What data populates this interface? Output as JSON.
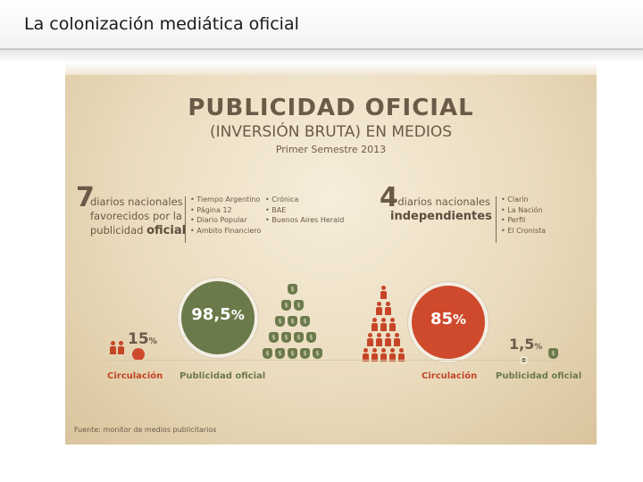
{
  "slide": {
    "title": "La colonización mediática oficial"
  },
  "infographic": {
    "title": "PUBLICIDAD OFICIAL",
    "subtitle": "(INVERSIÓN BRUTA) EN MEDIOS",
    "period": "Primer Semestre 2013",
    "favored": {
      "count": "7",
      "line1": "diarios nacionales",
      "line2": "favorecidos por la",
      "line3_a": "publicidad ",
      "line3_b": "oficial",
      "papers_col1": [
        "Tiempo Argentino",
        "Página 12",
        "Diario Popular",
        "Ambito Financiero"
      ],
      "papers_col2": [
        "Crónica",
        "BAE",
        "Buenos Aires Herald"
      ],
      "circulation_pct": "15",
      "ad_pct": "98,5",
      "circulation_label": "Circulación",
      "ad_label": "Publicidad oficial"
    },
    "independent": {
      "count": "4",
      "line1": "diarios nacionales",
      "line2": "independientes",
      "papers": [
        "Clarín",
        "La Nación",
        "Perfil",
        "El Cronista"
      ],
      "circulation_pct": "85",
      "ad_pct": "1,5",
      "circulation_label": "Circulación",
      "ad_label": "Publicidad oficial"
    },
    "percent_sign": "%",
    "currency_symbol": "$",
    "footer": "Fuente: monitor de medios publicitarios",
    "colors": {
      "green": "#6b7a4a",
      "red": "#cf4a2c",
      "brown": "#6b5a48"
    }
  }
}
